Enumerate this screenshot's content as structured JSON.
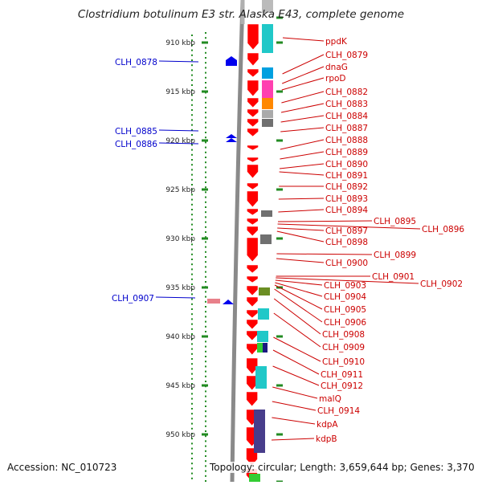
{
  "title": "Clostridium botulinum E3 str. Alaska E43, complete genome",
  "footer": {
    "accession": "Accession: NC_010723",
    "summary": "Topology: circular; Length: 3,659,644 bp; Genes: 3,370"
  },
  "colors": {
    "ruler_tick": "#228b22",
    "backbone": "#8a8a8a",
    "forward_gene": "#ff0000",
    "reverse_label": "#0000cc",
    "forward_label": "#cc0000",
    "cog_cyan": "#20c8c8",
    "cog_blue": "#00a0e0",
    "cog_magenta": "#ff40b0",
    "cog_orange": "#ff8800",
    "cog_grey": "#707070",
    "cog_olive": "#6b8e23",
    "cog_navy": "#1a1a80",
    "cog_purple": "#483d8b",
    "cog_green": "#33cc33"
  },
  "ruler": {
    "ticks": [
      "910 kbp",
      "915 kbp",
      "920 kbp",
      "925 kbp",
      "930 kbp",
      "935 kbp",
      "940 kbp",
      "945 kbp",
      "950 kbp"
    ]
  },
  "reverse_labels": [
    "CLH_0878",
    "CLH_0885",
    "CLH_0886",
    "CLH_0907"
  ],
  "forward_labels": [
    "ppdK",
    "CLH_0879",
    "dnaG",
    "rpoD",
    "CLH_0882",
    "CLH_0883",
    "CLH_0884",
    "CLH_0887",
    "CLH_0888",
    "CLH_0889",
    "CLH_0890",
    "CLH_0891",
    "CLH_0892",
    "CLH_0893",
    "CLH_0894",
    "CLH_0895",
    "CLH_0896",
    "CLH_0897",
    "CLH_0898",
    "CLH_0899",
    "CLH_0900",
    "CLH_0901",
    "CLH_0902",
    "CLH_0903",
    "CLH_0904",
    "CLH_0905",
    "CLH_0906",
    "CLH_0908",
    "CLH_0909",
    "CLH_0910",
    "CLH_0911",
    "CLH_0912",
    "malQ",
    "CLH_0914",
    "kdpA",
    "kdpB"
  ]
}
